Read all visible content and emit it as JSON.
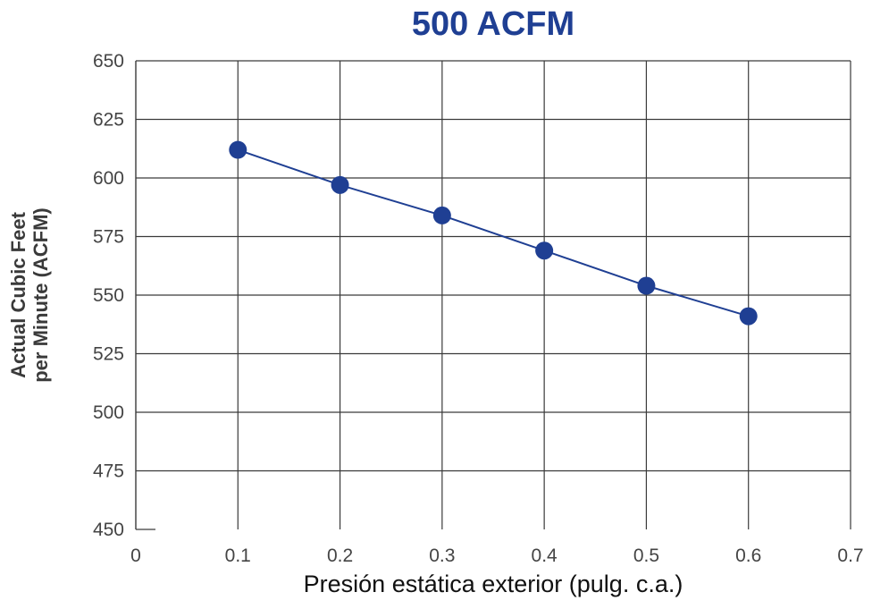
{
  "chart_data": {
    "type": "line",
    "title": "500 ACFM",
    "xlabel": "Presión estática exterior (pulg. c.a.)",
    "ylabel_lines": [
      "Actual Cubic Feet",
      "per Minute (ACFM)"
    ],
    "xlim": [
      0,
      0.7
    ],
    "ylim": [
      450,
      650
    ],
    "x_ticks": [
      "0",
      "0.1",
      "0.2",
      "0.3",
      "0.4",
      "0.5",
      "0.6",
      "0.7"
    ],
    "y_ticks": [
      "650",
      "625",
      "600",
      "575",
      "550",
      "525",
      "500",
      "475",
      "450"
    ],
    "grid": true,
    "series": [
      {
        "x": [
          0.1,
          0.2,
          0.3,
          0.4,
          0.5,
          0.6
        ],
        "y": [
          612,
          597,
          584,
          569,
          554,
          541
        ]
      }
    ],
    "colors": {
      "title": "#1f3f93",
      "line": "#1f3f93",
      "marker": "#1f3f93",
      "grid": "#3a3a3a"
    }
  }
}
